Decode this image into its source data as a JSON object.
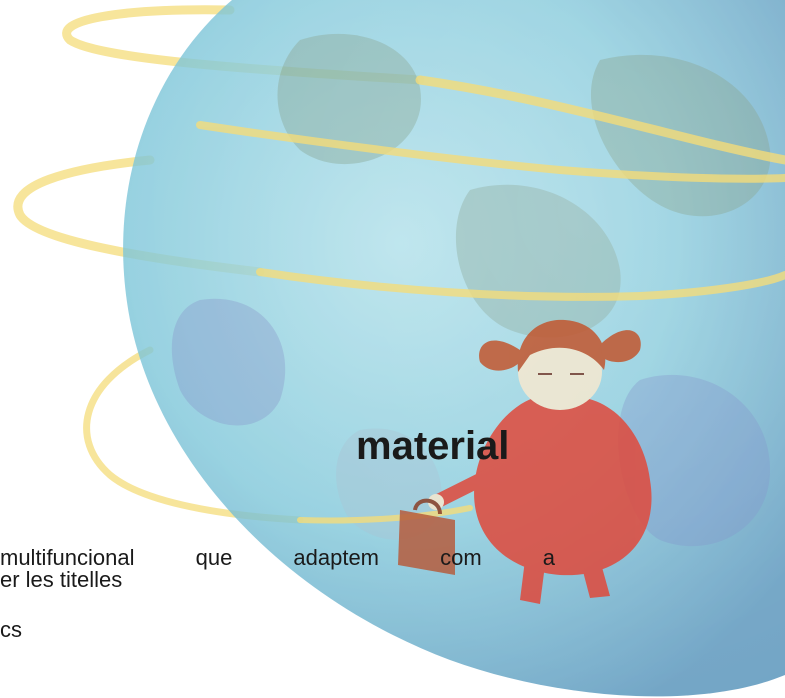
{
  "illustration": {
    "subject": "globe-with-girl",
    "colors": {
      "globe": "#7cc6d9",
      "globe_dark": "#4f8fb8",
      "land": "#6e9a8c",
      "ring": "#f4dc7a",
      "dress": "#e0493b",
      "hair": "#c2562e",
      "case": "#b65d3e",
      "skin": "#f6e9d0"
    }
  },
  "heading": "material",
  "text": {
    "line1": [
      "multifuncional",
      "que",
      "adaptem",
      "com",
      "a"
    ],
    "line2": "er les titelles",
    "line3": "cs"
  }
}
